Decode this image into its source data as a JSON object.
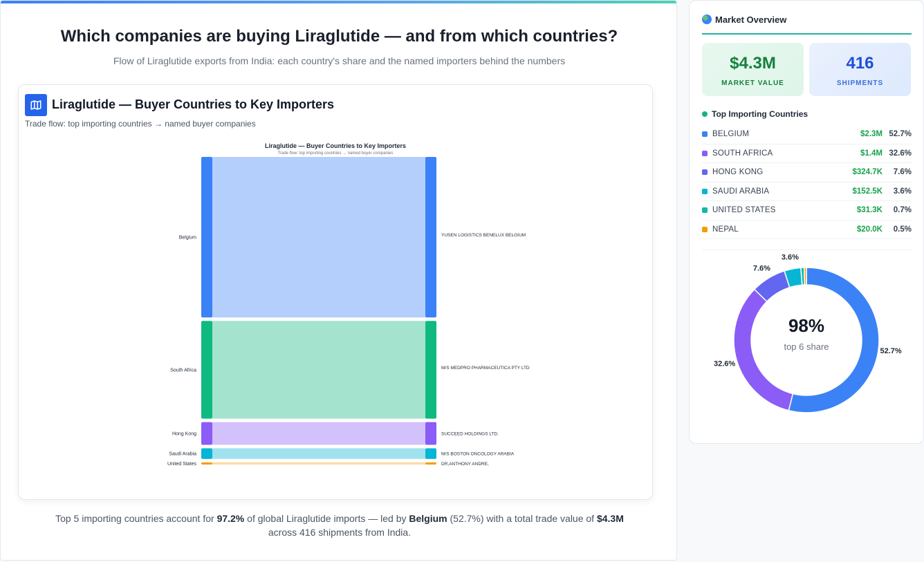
{
  "page": {
    "title": "Which companies are buying Liraglutide — and from which countries?",
    "subtitle": "Flow of Liraglutide exports from India: each country's share and the named importers behind the numbers"
  },
  "chart_card": {
    "title": "Liraglutide — Buyer Countries to Key Importers",
    "subtitle": "Trade flow: top importing countries → named buyer companies",
    "icon": "map-icon"
  },
  "chart_data": [
    {
      "type": "sankey",
      "title": "Liraglutide — Buyer Countries to Key Importers",
      "subtitle": "Trade flow: top importing countries → named buyer companies",
      "sources": [
        "Belgium",
        "South Africa",
        "Hong Kong",
        "Saudi Arabia",
        "United States"
      ],
      "targets": [
        "YUSEN LOGISTICS BENELUX BELGIUM",
        "M/S MEDPRO PHARMACEUTICA PTY LTD",
        "SUCCEED HOLDINGS LTD.",
        "M/S BOSTON ONCOLOGY ARABIA",
        "DR,ANTHONY ANDRE,"
      ],
      "flows": [
        {
          "source": "Belgium",
          "target": "YUSEN LOGISTICS BENELUX BELGIUM",
          "value": 2.3
        },
        {
          "source": "South Africa",
          "target": "M/S MEDPRO PHARMACEUTICA PTY LTD",
          "value": 1.4
        },
        {
          "source": "Hong Kong",
          "target": "SUCCEED HOLDINGS LTD.",
          "value": 0.3247
        },
        {
          "source": "Saudi Arabia",
          "target": "M/S BOSTON ONCOLOGY ARABIA",
          "value": 0.1525
        },
        {
          "source": "United States",
          "target": "DR,ANTHONY ANDRE,",
          "value": 0.0313
        }
      ],
      "colors": [
        "#3b82f6",
        "#10b981",
        "#8b5cf6",
        "#06b6d4",
        "#f59e0b"
      ]
    },
    {
      "type": "pie",
      "labels": [
        "BELGIUM",
        "SOUTH AFRICA",
        "HONG KONG",
        "SAUDI ARABIA",
        "UNITED STATES",
        "NEPAL"
      ],
      "values": [
        52.7,
        32.6,
        7.6,
        3.6,
        0.7,
        0.5
      ],
      "slice_labels": [
        "52.7%",
        "32.6%",
        "7.6%",
        "3.6%",
        "",
        ""
      ],
      "colors": [
        "#3b82f6",
        "#8b5cf6",
        "#6366f1",
        "#06b6d4",
        "#14b8a6",
        "#f59e0b"
      ],
      "center_value": "98%",
      "center_label": "top 6 share"
    }
  ],
  "insight": {
    "p1": "Top 5 importing countries account for ",
    "b1": "97.2%",
    "p2": " of global Liraglutide imports — led by ",
    "b2": "Belgium",
    "p3": " (52.7%) with a total trade value of ",
    "b3": "$4.3M",
    "p4": "across 416 shipments from India."
  },
  "sidebar": {
    "header": "Market Overview",
    "header_icon": "globe-icon",
    "kpis": [
      {
        "value": "$4.3M",
        "label": "MARKET VALUE"
      },
      {
        "value": "416",
        "label": "SHIPMENTS"
      }
    ],
    "list_title": "Top Importing Countries",
    "countries": [
      {
        "name": "BELGIUM",
        "value": "$2.3M",
        "pct": "52.7%",
        "color": "#3b82f6"
      },
      {
        "name": "SOUTH AFRICA",
        "value": "$1.4M",
        "pct": "32.6%",
        "color": "#8b5cf6"
      },
      {
        "name": "HONG KONG",
        "value": "$324.7K",
        "pct": "7.6%",
        "color": "#6366f1"
      },
      {
        "name": "SAUDI ARABIA",
        "value": "$152.5K",
        "pct": "3.6%",
        "color": "#06b6d4"
      },
      {
        "name": "UNITED STATES",
        "value": "$31.3K",
        "pct": "0.7%",
        "color": "#14b8a6"
      },
      {
        "name": "NEPAL",
        "value": "$20.0K",
        "pct": "0.5%",
        "color": "#f59e0b"
      }
    ]
  }
}
